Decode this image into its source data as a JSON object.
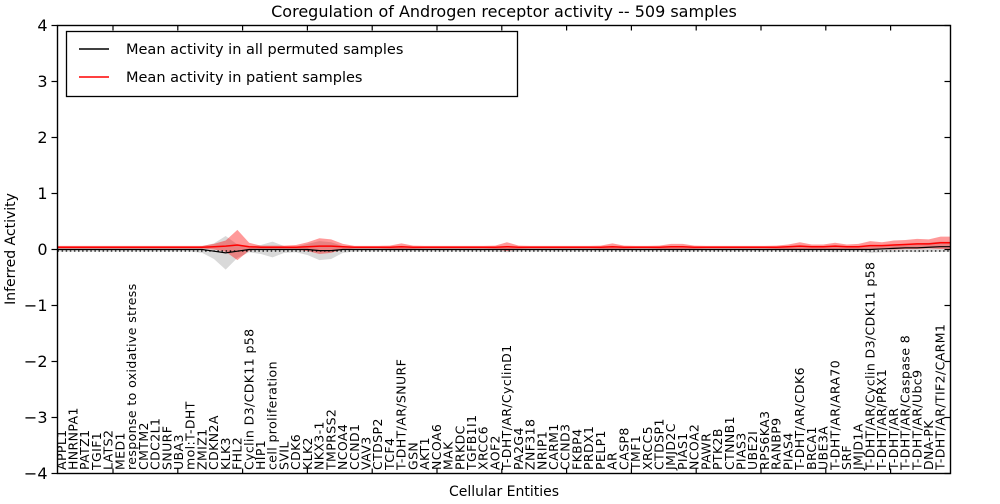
{
  "chart_data": {
    "type": "line",
    "title": "Coregulation of Androgen receptor activity -- 509 samples",
    "xlabel": "Cellular Entities",
    "ylabel": "Inferred Activity",
    "ylim": [
      -4,
      4
    ],
    "yticklabels": [
      "−4",
      "−3",
      "−2",
      "−1",
      "0",
      "1",
      "2",
      "3",
      "4"
    ],
    "grid": false,
    "legend_position": "upper left",
    "zero_line_style": "dotted",
    "categories": [
      "APPL1",
      "HNRNPA1",
      "PATZ1",
      "TGIF1",
      "LATS2",
      "MED1",
      "response to oxidative stress",
      "CMTM2",
      "CDC2L1",
      "SNURF",
      "UBA3",
      "mol:T-DHT",
      "ZMIZ1",
      "CDKN2A",
      "KLK3",
      "FHL2",
      "Cyclin D3/CDK11 p58",
      "HIP1",
      "cell proliferation",
      "SVIL",
      "CDK6",
      "KLK2",
      "NKX3-1",
      "TMPRSS2",
      "NCOA4",
      "CCND1",
      "VAV3",
      "CTDSP2",
      "TCF4",
      "T-DHT/AR/SNURF",
      "GSN",
      "AKT1",
      "NCOA6",
      "MAK",
      "PRKDC",
      "TGFB1I1",
      "XRCC6",
      "AOF2",
      "T-DHT/AR/CyclinD1",
      "PA2G4",
      "ZNF318",
      "NRIP1",
      "CARM1",
      "CCND3",
      "FKBP4",
      "PRDX1",
      "PELP1",
      "AR",
      "CASP8",
      "TMF1",
      "XRCC5",
      "CTDSP1",
      "JMJD2C",
      "PIAS1",
      "NCOA2",
      "PAWR",
      "PTK2B",
      "CTNNB1",
      "PIAS3",
      "UBE2I",
      "RPS6KA3",
      "RANBP9",
      "PIAS4",
      "T-DHT/AR/CDK6",
      "BRCA1",
      "UBE3A",
      "T-DHT/AR/ARA70",
      "SRF",
      "JMJD1A",
      "T-DHT/AR/Cyclin D3/CDK11 p58",
      "T-DHT/AR/PRX1",
      "T-DHT/AR",
      "T-DHT/AR/Caspase 8",
      "T-DHT/AR/Ubc9",
      "DNA-PK",
      "T-DHT/AR/TIF2/CARM1"
    ],
    "series": [
      {
        "name": "Mean activity in all permuted samples",
        "color": "#000000",
        "band_color": "#808080",
        "band_opacity": 0.3,
        "values": [
          0,
          0,
          0,
          0,
          0,
          0,
          0,
          0,
          0,
          0,
          0,
          0,
          0,
          -0.03,
          -0.06,
          -0.03,
          0,
          0,
          0,
          0,
          0,
          0,
          -0.02,
          -0.02,
          0,
          0,
          0,
          0,
          0,
          0,
          0,
          0,
          0,
          0,
          0,
          0,
          0,
          0,
          0,
          0,
          0,
          0,
          0,
          0,
          0,
          0,
          0,
          0,
          0,
          0,
          0,
          0,
          0,
          0,
          0,
          0,
          0,
          0,
          0,
          0,
          0,
          0,
          0,
          0,
          0,
          0,
          0,
          0,
          0,
          0,
          0.01,
          0.02,
          0.03,
          0.03,
          0.04,
          0.05
        ],
        "band_half_width": [
          0.035,
          0.035,
          0.035,
          0.035,
          0.035,
          0.035,
          0.035,
          0.035,
          0.035,
          0.035,
          0.035,
          0.035,
          0.06,
          0.14,
          0.3,
          0.12,
          0.05,
          0.08,
          0.14,
          0.06,
          0.05,
          0.1,
          0.17,
          0.15,
          0.06,
          0.035,
          0.035,
          0.035,
          0.035,
          0.035,
          0.035,
          0.035,
          0.035,
          0.035,
          0.035,
          0.035,
          0.035,
          0.04,
          0.05,
          0.035,
          0.035,
          0.035,
          0.035,
          0.035,
          0.035,
          0.035,
          0.035,
          0.035,
          0.035,
          0.035,
          0.035,
          0.035,
          0.04,
          0.04,
          0.035,
          0.035,
          0.035,
          0.035,
          0.035,
          0.035,
          0.035,
          0.035,
          0.04,
          0.05,
          0.04,
          0.04,
          0.05,
          0.04,
          0.04,
          0.06,
          0.06,
          0.07,
          0.07,
          0.08,
          0.08,
          0.09
        ]
      },
      {
        "name": "Mean activity in patient samples",
        "color": "#ff0000",
        "band_color": "#ff0000",
        "band_opacity": 0.4,
        "values": [
          0.04,
          0.04,
          0.04,
          0.04,
          0.04,
          0.04,
          0.04,
          0.04,
          0.04,
          0.04,
          0.04,
          0.04,
          0.04,
          0.05,
          0.06,
          0.08,
          0.05,
          0.04,
          0.04,
          0.04,
          0.04,
          0.05,
          0.06,
          0.06,
          0.05,
          0.04,
          0.04,
          0.04,
          0.04,
          0.05,
          0.04,
          0.04,
          0.04,
          0.04,
          0.04,
          0.04,
          0.04,
          0.04,
          0.05,
          0.04,
          0.04,
          0.04,
          0.04,
          0.04,
          0.04,
          0.04,
          0.04,
          0.05,
          0.04,
          0.04,
          0.04,
          0.04,
          0.05,
          0.05,
          0.04,
          0.04,
          0.04,
          0.04,
          0.04,
          0.04,
          0.04,
          0.04,
          0.05,
          0.06,
          0.05,
          0.05,
          0.06,
          0.05,
          0.05,
          0.07,
          0.07,
          0.08,
          0.09,
          0.1,
          0.1,
          0.12
        ],
        "band_half_width": [
          0.025,
          0.025,
          0.025,
          0.025,
          0.025,
          0.025,
          0.025,
          0.025,
          0.025,
          0.025,
          0.025,
          0.025,
          0.025,
          0.05,
          0.1,
          0.27,
          0.07,
          0.03,
          0.03,
          0.03,
          0.04,
          0.08,
          0.14,
          0.12,
          0.05,
          0.025,
          0.025,
          0.025,
          0.03,
          0.06,
          0.03,
          0.025,
          0.025,
          0.025,
          0.025,
          0.025,
          0.025,
          0.03,
          0.08,
          0.03,
          0.025,
          0.025,
          0.025,
          0.025,
          0.025,
          0.025,
          0.03,
          0.06,
          0.03,
          0.025,
          0.025,
          0.03,
          0.05,
          0.05,
          0.03,
          0.025,
          0.025,
          0.025,
          0.025,
          0.025,
          0.025,
          0.03,
          0.04,
          0.07,
          0.04,
          0.04,
          0.06,
          0.04,
          0.05,
          0.08,
          0.06,
          0.08,
          0.08,
          0.09,
          0.08,
          0.11
        ]
      }
    ]
  }
}
